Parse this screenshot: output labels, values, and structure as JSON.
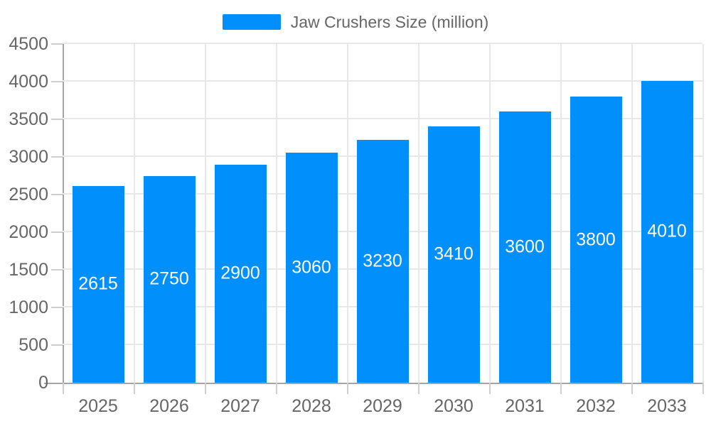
{
  "legend": {
    "label": "Jaw Crushers Size (million)"
  },
  "chart_data": {
    "type": "bar",
    "title": "",
    "xlabel": "",
    "ylabel": "",
    "series_name": "Jaw Crushers Size (million)",
    "categories": [
      "2025",
      "2026",
      "2027",
      "2028",
      "2029",
      "2030",
      "2031",
      "2032",
      "2033"
    ],
    "values": [
      2615,
      2750,
      2900,
      3060,
      3230,
      3410,
      3600,
      3800,
      4010
    ],
    "yticks": [
      0,
      500,
      1000,
      1500,
      2000,
      2500,
      3000,
      3500,
      4000,
      4500
    ],
    "ylim": [
      0,
      4500
    ],
    "grid": "on",
    "legend_position": "top",
    "colors": {
      "bar": "#008FFB",
      "data_label": "#FFFFFF",
      "axis_label": "#666666",
      "legend_label": "#666666",
      "grid_line": "#e8e8e8",
      "axis_line": "#a3a3a8",
      "tick_line": "#cfcfcf"
    }
  }
}
